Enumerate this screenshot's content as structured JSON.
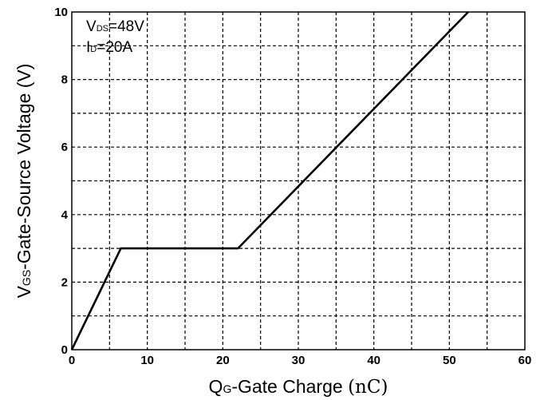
{
  "chart_data": {
    "type": "line",
    "xlabel": {
      "main": "Q",
      "sub": "G",
      "rest": "-Gate Charge ",
      "unit": "(nC)"
    },
    "ylabel": {
      "main": "V",
      "sub": "GS",
      "rest": "-Gate-Source Voltage (V)"
    },
    "xlim": [
      0,
      60
    ],
    "ylim": [
      0,
      10
    ],
    "x_ticks": [
      0,
      10,
      20,
      30,
      40,
      50,
      60
    ],
    "y_ticks": [
      0,
      2,
      4,
      6,
      8,
      10
    ],
    "x_grid_step": 5,
    "y_grid_step": 1,
    "grid": true,
    "annotations": [
      {
        "main": "V",
        "sub": "DS",
        "rest": "=48V"
      },
      {
        "main": "I",
        "sub": "D",
        "rest": "=20A"
      }
    ],
    "series": [
      {
        "x": [
          0,
          6.5,
          22,
          52.5
        ],
        "y": [
          0,
          3.0,
          3.0,
          10.0
        ]
      }
    ]
  }
}
